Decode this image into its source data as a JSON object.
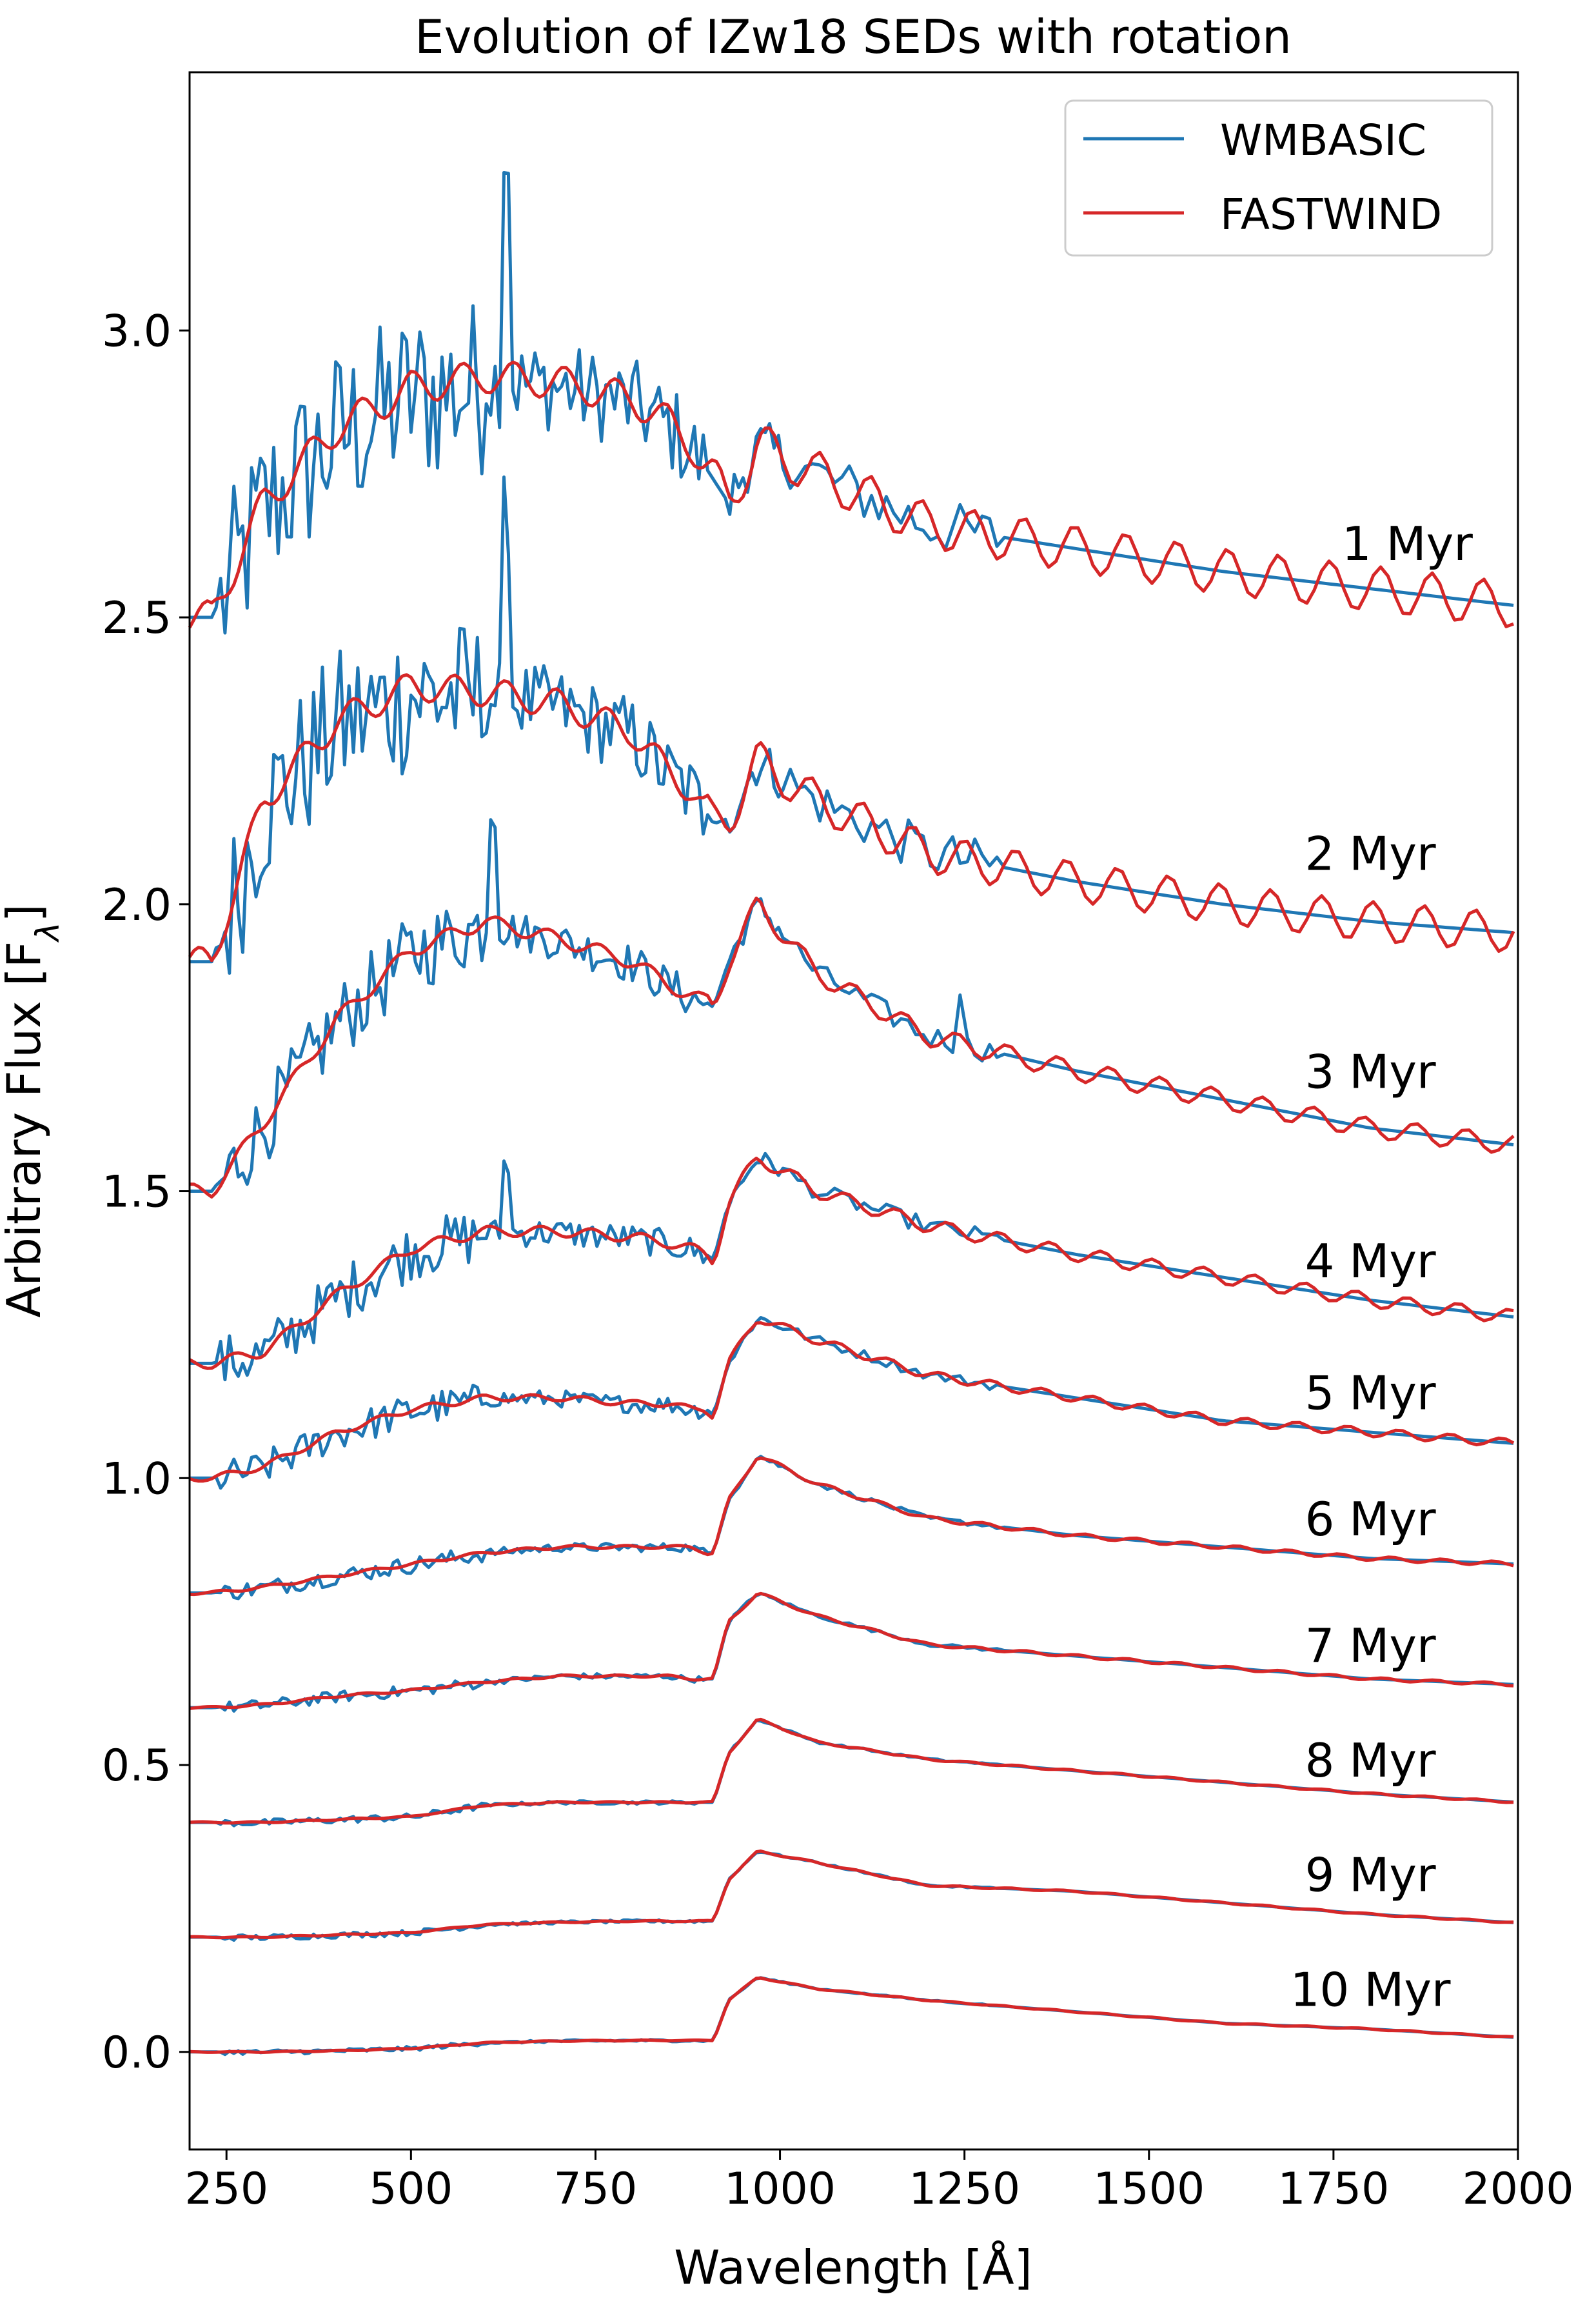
{
  "chart_data": {
    "type": "line",
    "title": "Evolution of IZw18 SEDs with rotation",
    "xlabel": "Wavelength [Å]",
    "ylabel": "Arbitrary Flux [F",
    "ylabel_sub": "λ",
    "ylabel_close": "]",
    "xlim": [
      200,
      2000
    ],
    "ylim": [
      -0.17,
      3.45
    ],
    "xticks": [
      250,
      500,
      750,
      1000,
      1250,
      1500,
      1750,
      2000
    ],
    "xtick_labels": [
      "250",
      "500",
      "750",
      "1000",
      "1250",
      "1500",
      "1750",
      "2000"
    ],
    "yticks": [
      0.0,
      0.5,
      1.0,
      1.5,
      2.0,
      2.5,
      3.0
    ],
    "ytick_labels": [
      "0.0",
      "0.5",
      "1.0",
      "1.5",
      "2.0",
      "2.5",
      "3.0"
    ],
    "grid": false,
    "legend": {
      "position": "top-right",
      "entries": [
        {
          "label": "WMBASIC",
          "color": "#1f77b4"
        },
        {
          "label": "FASTWIND",
          "color": "#d62728"
        }
      ]
    },
    "series_colors": {
      "WMBASIC": "#1f77b4",
      "FASTWIND": "#d62728"
    },
    "panels": [
      {
        "label": "1 Myr",
        "offset": 2.5,
        "label_x": 1850,
        "label_y": 2.6,
        "flux": [
          0.0,
          0.0,
          0.2,
          0.33,
          0.4,
          0.42,
          0.41,
          0.38,
          0.34,
          0.3,
          0.26,
          0.24,
          0.2,
          0.3,
          0.25,
          0.16,
          0.12,
          0.08,
          0.05,
          0.02
        ],
        "noise": 0.16,
        "spikes": [
          [
            630,
            0.4
          ]
        ]
      },
      {
        "label": "2 Myr",
        "offset": 1.9,
        "label_x": 1800,
        "label_y": 2.06,
        "flux": [
          0.0,
          0.0,
          0.28,
          0.42,
          0.48,
          0.47,
          0.45,
          0.4,
          0.33,
          0.3,
          0.26,
          0.24,
          0.25,
          0.35,
          0.28,
          0.19,
          0.14,
          0.1,
          0.07,
          0.05
        ],
        "noise": 0.14,
        "spikes": [
          [
            630,
            0.32
          ]
        ]
      },
      {
        "label": "3 Myr",
        "offset": 1.5,
        "label_x": 1800,
        "label_y": 1.68,
        "flux": [
          0.0,
          0.0,
          0.12,
          0.3,
          0.42,
          0.47,
          0.44,
          0.4,
          0.36,
          0.34,
          0.33,
          0.32,
          0.4,
          0.5,
          0.38,
          0.27,
          0.21,
          0.16,
          0.11,
          0.08
        ],
        "noise": 0.07,
        "spikes": [
          [
            610,
            0.2
          ],
          [
            1240,
            0.1
          ]
        ]
      },
      {
        "label": "4 Myr",
        "offset": 1.2,
        "label_x": 1800,
        "label_y": 1.35,
        "flux": [
          0.0,
          0.0,
          0.02,
          0.12,
          0.2,
          0.23,
          0.23,
          0.22,
          0.21,
          0.2,
          0.19,
          0.18,
          0.28,
          0.36,
          0.3,
          0.24,
          0.19,
          0.15,
          0.11,
          0.08
        ],
        "noise": 0.05,
        "spikes": [
          [
            630,
            0.12
          ]
        ]
      },
      {
        "label": "5 Myr",
        "offset": 1.0,
        "label_x": 1800,
        "label_y": 1.12,
        "flux": [
          0.0,
          0.0,
          0.02,
          0.08,
          0.12,
          0.14,
          0.14,
          0.13,
          0.13,
          0.12,
          0.12,
          0.11,
          0.2,
          0.28,
          0.24,
          0.18,
          0.14,
          0.1,
          0.08,
          0.06
        ],
        "noise": 0.03,
        "spikes": []
      },
      {
        "label": "6 Myr",
        "offset": 0.8,
        "label_x": 1800,
        "label_y": 0.9,
        "flux": [
          0.0,
          0.0,
          0.01,
          0.03,
          0.05,
          0.07,
          0.08,
          0.08,
          0.08,
          0.08,
          0.07,
          0.07,
          0.16,
          0.24,
          0.19,
          0.13,
          0.1,
          0.08,
          0.06,
          0.05
        ],
        "noise": 0.015,
        "spikes": []
      },
      {
        "label": "7 Myr",
        "offset": 0.6,
        "label_x": 1800,
        "label_y": 0.68,
        "flux": [
          0.0,
          0.0,
          0.005,
          0.02,
          0.03,
          0.045,
          0.055,
          0.055,
          0.055,
          0.05,
          0.05,
          0.05,
          0.15,
          0.2,
          0.16,
          0.11,
          0.09,
          0.07,
          0.05,
          0.04
        ],
        "noise": 0.01,
        "spikes": []
      },
      {
        "label": "8 Myr",
        "offset": 0.4,
        "label_x": 1800,
        "label_y": 0.48,
        "flux": [
          0.0,
          0.0,
          0.0,
          0.005,
          0.01,
          0.03,
          0.035,
          0.035,
          0.035,
          0.035,
          0.035,
          0.035,
          0.12,
          0.18,
          0.14,
          0.11,
          0.09,
          0.07,
          0.05,
          0.035
        ],
        "noise": 0.006,
        "spikes": []
      },
      {
        "label": "9 Myr",
        "offset": 0.2,
        "label_x": 1800,
        "label_y": 0.28,
        "flux": [
          0.0,
          0.0,
          0.0,
          0.004,
          0.008,
          0.022,
          0.026,
          0.028,
          0.028,
          0.028,
          0.028,
          0.028,
          0.1,
          0.15,
          0.13,
          0.09,
          0.08,
          0.06,
          0.04,
          0.025
        ],
        "noise": 0.005,
        "spikes": []
      },
      {
        "label": "10 Myr",
        "offset": 0.0,
        "label_x": 1800,
        "label_y": 0.08,
        "flux": [
          0.0,
          0.0,
          0.0,
          0.002,
          0.006,
          0.016,
          0.019,
          0.02,
          0.02,
          0.02,
          0.02,
          0.02,
          0.09,
          0.13,
          0.11,
          0.09,
          0.07,
          0.05,
          0.04,
          0.025
        ],
        "noise": 0.004,
        "spikes": []
      }
    ],
    "flux_grid_x": [
      200,
      230,
      300,
      400,
      500,
      600,
      700,
      800,
      850,
      880,
      900,
      910,
      930,
      970,
      1050,
      1200,
      1400,
      1600,
      1800,
      2000
    ]
  }
}
